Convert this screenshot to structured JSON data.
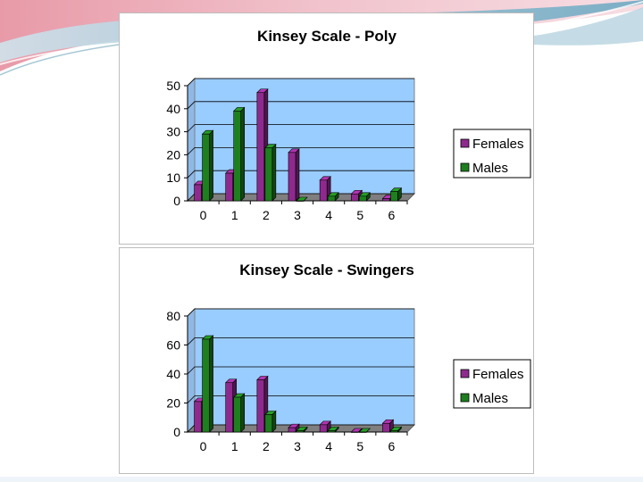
{
  "slide": {
    "background": "#ffffff",
    "swoosh_colors": [
      "#e8a9b5",
      "#9fc6d6",
      "#c7d9e4"
    ]
  },
  "chart_data": [
    {
      "type": "bar",
      "title": "Kinsey Scale - Poly",
      "categories": [
        "0",
        "1",
        "2",
        "3",
        "4",
        "5",
        "6"
      ],
      "series": [
        {
          "name": "Females",
          "values": [
            7,
            12,
            47,
            21,
            9,
            3,
            1
          ],
          "color": "#8e2a8e"
        },
        {
          "name": "Males",
          "values": [
            29,
            39,
            23,
            0,
            2,
            2,
            4
          ],
          "color": "#1e7f1e"
        }
      ],
      "ylim": [
        0,
        50
      ],
      "yticks": [
        "0",
        "10",
        "20",
        "30",
        "40",
        "50"
      ],
      "legend": "right",
      "grid": true,
      "plot_color": "#99ccff"
    },
    {
      "type": "bar",
      "title": "Kinsey Scale - Swingers",
      "categories": [
        "0",
        "1",
        "2",
        "3",
        "4",
        "5",
        "6"
      ],
      "series": [
        {
          "name": "Females",
          "values": [
            21,
            34,
            36,
            3,
            5,
            0,
            6
          ],
          "color": "#8e2a8e"
        },
        {
          "name": "Males",
          "values": [
            64,
            24,
            12,
            1,
            1,
            0,
            1
          ],
          "color": "#1e7f1e"
        }
      ],
      "ylim": [
        0,
        80
      ],
      "yticks": [
        "0",
        "20",
        "40",
        "60",
        "80"
      ],
      "legend": "right",
      "grid": true,
      "plot_color": "#99ccff"
    }
  ]
}
